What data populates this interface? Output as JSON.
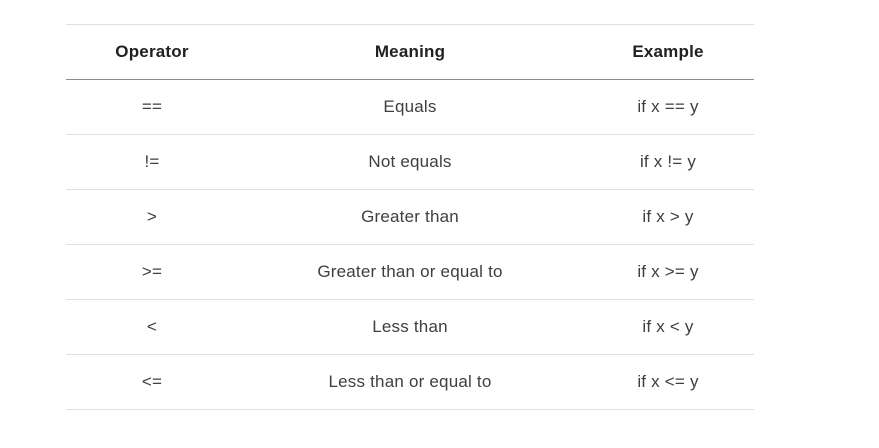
{
  "table": {
    "title": "comparison-operators",
    "columns": [
      {
        "key": "operator",
        "label": "Operator"
      },
      {
        "key": "meaning",
        "label": "Meaning"
      },
      {
        "key": "example",
        "label": "Example"
      }
    ],
    "rows": [
      {
        "operator": "==",
        "meaning": "Equals",
        "example": "if x == y"
      },
      {
        "operator": "!=",
        "meaning": "Not equals",
        "example": "if x != y"
      },
      {
        "operator": ">",
        "meaning": "Greater than",
        "example": "if x > y"
      },
      {
        "operator": ">=",
        "meaning": "Greater than or equal to",
        "example": "if x >= y"
      },
      {
        "operator": "<",
        "meaning": "Less than",
        "example": "if x < y"
      },
      {
        "operator": "<=",
        "meaning": "Less than or equal to",
        "example": "if x <= y"
      }
    ],
    "colors": {
      "page_bg": "#ffffff",
      "header_text": "#202124",
      "body_text": "#3c4043",
      "divider": "#e0e0e0",
      "header_divider": "#8c8c8c"
    }
  }
}
